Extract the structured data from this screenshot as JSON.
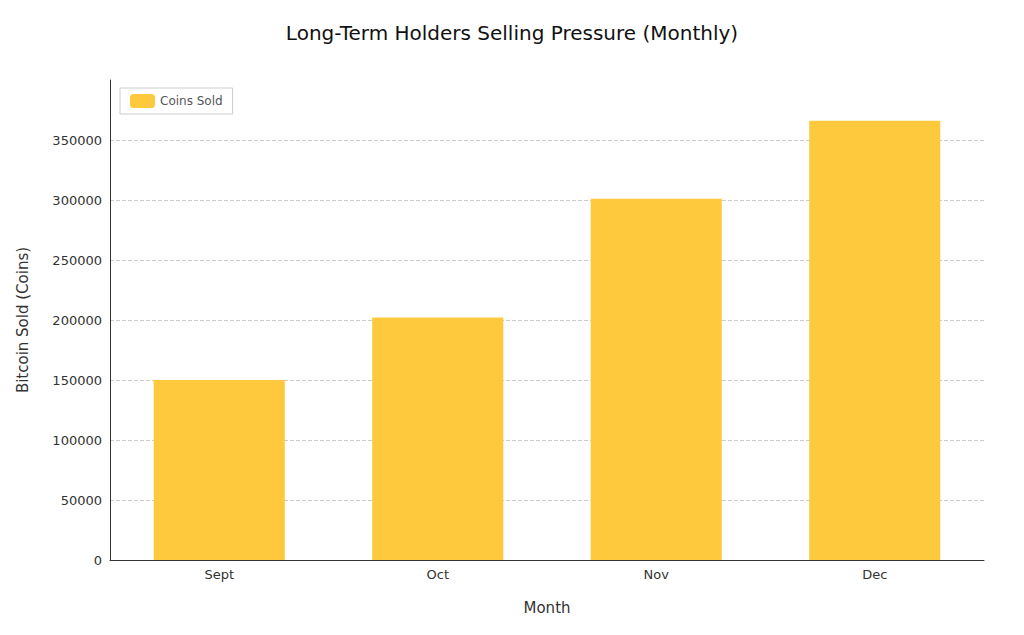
{
  "chart_data": {
    "type": "bar",
    "title": "Long-Term Holders Selling Pressure (Monthly)",
    "xlabel": "Month",
    "ylabel": "Bitcoin Sold (Coins)",
    "categories": [
      "Sept",
      "Oct",
      "Nov",
      "Dec"
    ],
    "series": [
      {
        "name": "Coins Sold",
        "color": "#FFC93E",
        "values": [
          150000,
          202000,
          301000,
          366000
        ]
      }
    ],
    "ylim": [
      0,
      400000
    ],
    "yticks": [
      0,
      50000,
      100000,
      150000,
      200000,
      250000,
      300000,
      350000
    ],
    "grid": true,
    "legend": "upper left"
  }
}
